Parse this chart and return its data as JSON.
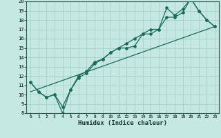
{
  "xlabel": "Humidex (Indice chaleur)",
  "xlim": [
    -0.5,
    23.5
  ],
  "ylim": [
    8,
    20
  ],
  "xticks": [
    0,
    1,
    2,
    3,
    4,
    5,
    6,
    7,
    8,
    9,
    10,
    11,
    12,
    13,
    14,
    15,
    16,
    17,
    18,
    19,
    20,
    21,
    22,
    23
  ],
  "yticks": [
    8,
    9,
    10,
    11,
    12,
    13,
    14,
    15,
    16,
    17,
    18,
    19,
    20
  ],
  "bg_color": "#c5e8e2",
  "line_color": "#1a6b5a",
  "grid_color": "#9eccc4",
  "line1_x": [
    0,
    1,
    2,
    3,
    4,
    5,
    6,
    7,
    8,
    9,
    10,
    11,
    12,
    13,
    14,
    15,
    16,
    17,
    18,
    19,
    20,
    21,
    22,
    23
  ],
  "line1_y": [
    11.3,
    10.3,
    9.7,
    10.0,
    8.7,
    10.5,
    12.0,
    12.5,
    13.5,
    13.8,
    14.5,
    15.0,
    15.0,
    15.2,
    16.5,
    16.5,
    17.0,
    19.3,
    18.5,
    19.2,
    20.3,
    19.0,
    18.0,
    17.3
  ],
  "line2_x": [
    0,
    1,
    2,
    3,
    4,
    5,
    6,
    7,
    8,
    9,
    10,
    11,
    12,
    13,
    14,
    15,
    16,
    17,
    18,
    19,
    20,
    21,
    22,
    23
  ],
  "line2_y": [
    11.3,
    10.3,
    9.7,
    10.0,
    8.0,
    10.5,
    11.8,
    12.3,
    13.3,
    13.8,
    14.5,
    15.0,
    15.5,
    16.0,
    16.5,
    17.0,
    17.0,
    18.3,
    18.3,
    18.8,
    20.3,
    19.0,
    18.0,
    17.3
  ],
  "line3_x": [
    0,
    23
  ],
  "line3_y": [
    10.3,
    17.3
  ]
}
